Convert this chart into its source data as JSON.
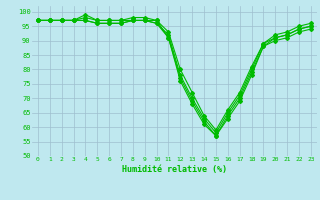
{
  "title": "",
  "xlabel": "Humidité relative (%)",
  "ylabel": "",
  "xlim": [
    -0.5,
    23.5
  ],
  "ylim": [
    50,
    102
  ],
  "yticks": [
    50,
    55,
    60,
    65,
    70,
    75,
    80,
    85,
    90,
    95,
    100
  ],
  "xticks": [
    0,
    1,
    2,
    3,
    4,
    5,
    6,
    7,
    8,
    9,
    10,
    11,
    12,
    13,
    14,
    15,
    16,
    17,
    18,
    19,
    20,
    21,
    22,
    23
  ],
  "bg_color": "#bfe8ef",
  "grid_color": "#9fbfcf",
  "line_color": "#00bb00",
  "lines": [
    [
      97,
      97,
      97,
      97,
      99,
      97,
      97,
      97,
      98,
      98,
      97,
      91,
      77,
      69,
      62,
      57,
      64,
      70,
      79,
      88,
      91,
      92,
      94,
      95
    ],
    [
      97,
      97,
      97,
      97,
      98,
      97,
      97,
      97,
      97,
      97,
      96,
      91,
      76,
      68,
      61,
      57,
      63,
      69,
      78,
      88,
      90,
      91,
      93,
      94
    ],
    [
      97,
      97,
      97,
      97,
      97,
      96,
      96,
      96,
      97,
      97,
      96,
      92,
      78,
      70,
      63,
      58,
      65,
      71,
      80,
      89,
      91,
      92,
      94,
      95
    ],
    [
      97,
      97,
      97,
      97,
      97,
      96,
      96,
      96,
      97,
      97,
      97,
      93,
      80,
      72,
      64,
      59,
      66,
      72,
      81,
      89,
      92,
      93,
      95,
      96
    ]
  ],
  "marker": "D",
  "marker_size": 2.0,
  "line_width": 0.8
}
